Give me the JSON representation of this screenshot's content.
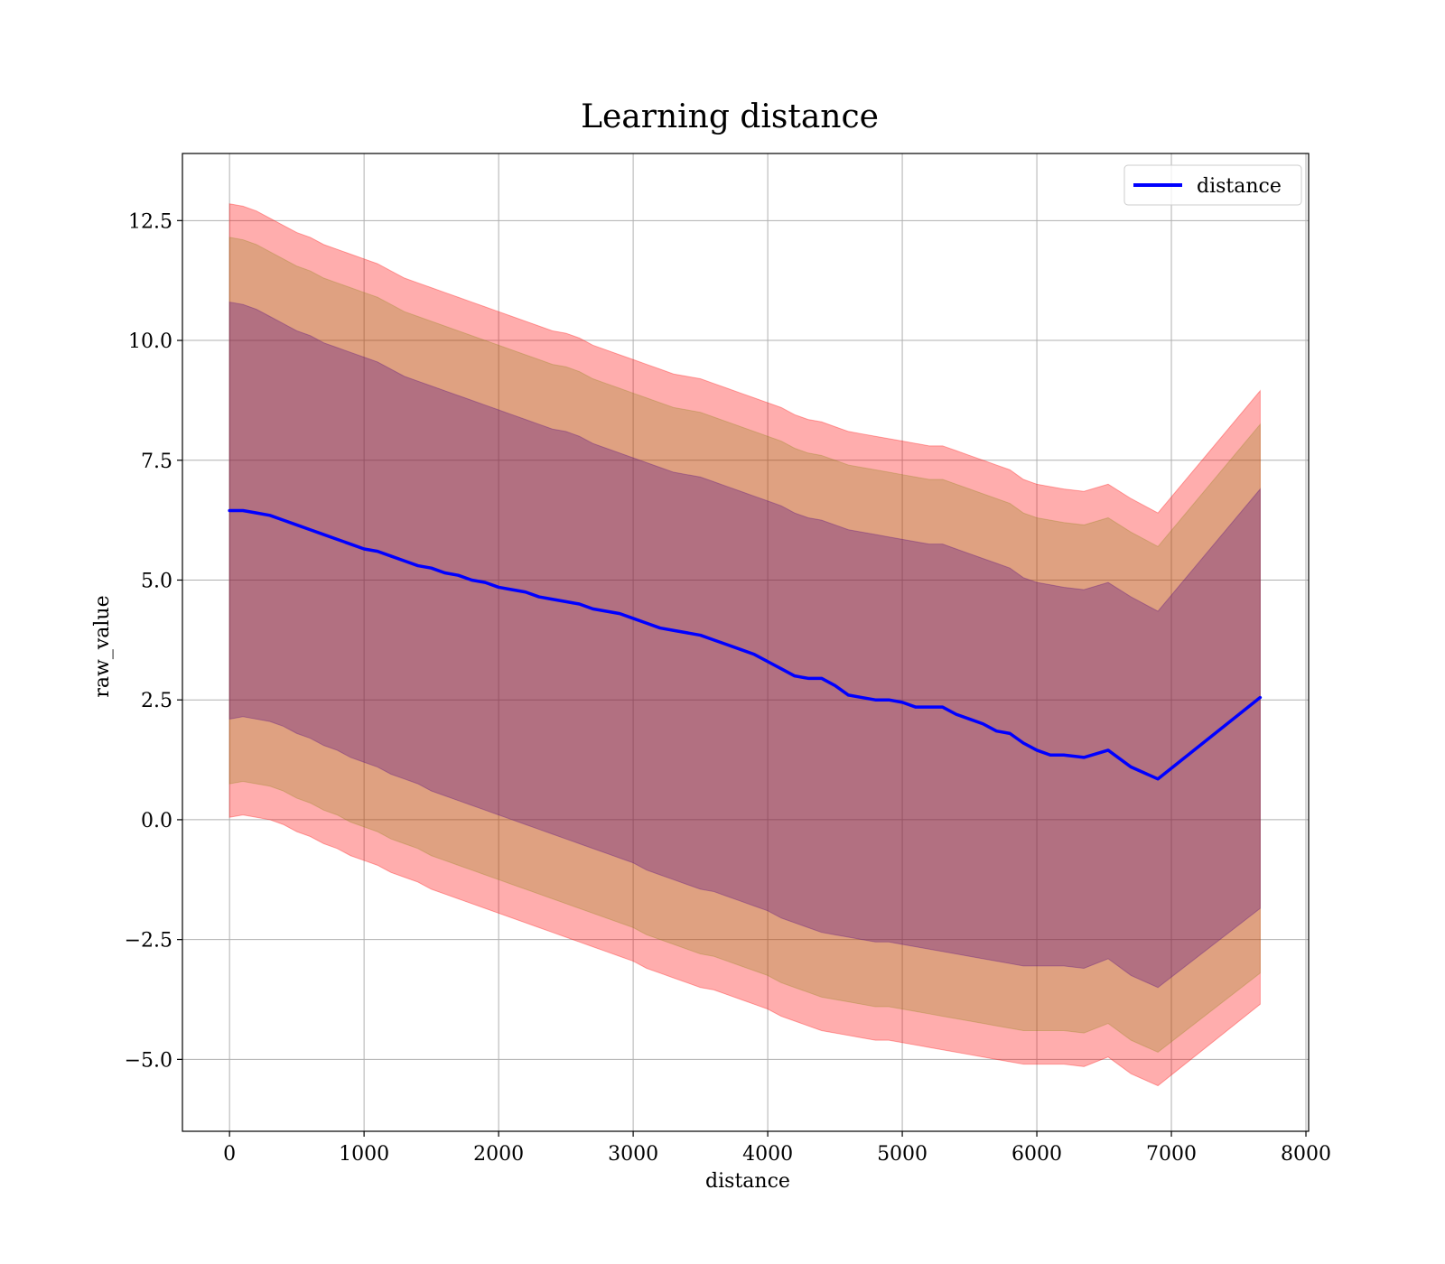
{
  "chart_data": {
    "type": "line",
    "title": "Learning distance",
    "xlabel": "distance",
    "ylabel": "raw_value",
    "xlim": [
      -350,
      8020
    ],
    "ylim": [
      -6.5,
      13.9
    ],
    "x_ticks": [
      0,
      1000,
      2000,
      3000,
      4000,
      5000,
      6000,
      7000,
      8000
    ],
    "x_tick_labels": [
      "0",
      "1000",
      "2000",
      "3000",
      "4000",
      "5000",
      "6000",
      "7000",
      "8000"
    ],
    "y_ticks": [
      -5.0,
      -2.5,
      0.0,
      2.5,
      5.0,
      7.5,
      10.0,
      12.5
    ],
    "y_tick_labels": [
      "−5.0",
      "−2.5",
      "0.0",
      "2.5",
      "5.0",
      "7.5",
      "10.0",
      "12.5"
    ],
    "grid": true,
    "legend": {
      "position": "upper right",
      "entries": [
        "distance"
      ]
    },
    "series": [
      {
        "name": "distance",
        "color": "#0000ff",
        "x": [
          0,
          100,
          200,
          300,
          400,
          500,
          600,
          700,
          800,
          900,
          1000,
          1100,
          1200,
          1300,
          1400,
          1500,
          1600,
          1700,
          1800,
          1900,
          2000,
          2100,
          2200,
          2300,
          2400,
          2500,
          2600,
          2700,
          2800,
          2900,
          3000,
          3100,
          3200,
          3300,
          3400,
          3500,
          3600,
          3700,
          3800,
          3900,
          4000,
          4100,
          4200,
          4300,
          4400,
          4500,
          4600,
          4700,
          4800,
          4900,
          5000,
          5100,
          5200,
          5300,
          5400,
          5500,
          5600,
          5700,
          5800,
          5900,
          6000,
          6100,
          6200,
          6350,
          6530,
          6700,
          6900,
          7660
        ],
        "y": [
          6.45,
          6.45,
          6.4,
          6.35,
          6.25,
          6.15,
          6.05,
          5.95,
          5.85,
          5.75,
          5.65,
          5.6,
          5.5,
          5.4,
          5.3,
          5.25,
          5.15,
          5.1,
          5.0,
          4.95,
          4.85,
          4.8,
          4.75,
          4.65,
          4.6,
          4.55,
          4.5,
          4.4,
          4.35,
          4.3,
          4.2,
          4.1,
          4.0,
          3.95,
          3.9,
          3.85,
          3.75,
          3.65,
          3.55,
          3.45,
          3.3,
          3.15,
          3.0,
          2.95,
          2.95,
          2.8,
          2.6,
          2.55,
          2.5,
          2.5,
          2.45,
          2.35,
          2.35,
          2.35,
          2.2,
          2.1,
          2.0,
          1.85,
          1.8,
          1.6,
          1.45,
          1.35,
          1.35,
          1.3,
          1.45,
          1.1,
          0.85,
          2.55
        ]
      }
    ],
    "bands": [
      {
        "color": "#ff0000",
        "opacity": 0.32,
        "upper": [
          12.85,
          12.8,
          12.7,
          12.55,
          12.4,
          12.25,
          12.15,
          12.0,
          11.9,
          11.8,
          11.7,
          11.6,
          11.45,
          11.3,
          11.2,
          11.1,
          11.0,
          10.9,
          10.8,
          10.7,
          10.6,
          10.5,
          10.4,
          10.3,
          10.2,
          10.15,
          10.05,
          9.9,
          9.8,
          9.7,
          9.6,
          9.5,
          9.4,
          9.3,
          9.25,
          9.2,
          9.1,
          9.0,
          8.9,
          8.8,
          8.7,
          8.6,
          8.45,
          8.35,
          8.3,
          8.2,
          8.1,
          8.05,
          8.0,
          7.95,
          7.9,
          7.85,
          7.8,
          7.8,
          7.7,
          7.6,
          7.5,
          7.4,
          7.3,
          7.1,
          7.0,
          6.95,
          6.9,
          6.85,
          7.0,
          6.7,
          6.4,
          8.95
        ],
        "lower": [
          0.05,
          0.1,
          0.05,
          0.0,
          -0.1,
          -0.25,
          -0.35,
          -0.5,
          -0.6,
          -0.75,
          -0.85,
          -0.95,
          -1.1,
          -1.2,
          -1.3,
          -1.45,
          -1.55,
          -1.65,
          -1.75,
          -1.85,
          -1.95,
          -2.05,
          -2.15,
          -2.25,
          -2.35,
          -2.45,
          -2.55,
          -2.65,
          -2.75,
          -2.85,
          -2.95,
          -3.1,
          -3.2,
          -3.3,
          -3.4,
          -3.5,
          -3.55,
          -3.65,
          -3.75,
          -3.85,
          -3.95,
          -4.1,
          -4.2,
          -4.3,
          -4.4,
          -4.45,
          -4.5,
          -4.55,
          -4.6,
          -4.6,
          -4.65,
          -4.7,
          -4.75,
          -4.8,
          -4.85,
          -4.9,
          -4.95,
          -5.0,
          -5.05,
          -5.1,
          -5.1,
          -5.1,
          -5.1,
          -5.15,
          -4.95,
          -5.3,
          -5.55,
          -3.85
        ]
      },
      {
        "color": "#808000",
        "opacity": 0.25,
        "upper": [
          12.15,
          12.1,
          12.0,
          11.85,
          11.7,
          11.55,
          11.45,
          11.3,
          11.2,
          11.1,
          11.0,
          10.9,
          10.75,
          10.6,
          10.5,
          10.4,
          10.3,
          10.2,
          10.1,
          10.0,
          9.9,
          9.8,
          9.7,
          9.6,
          9.5,
          9.45,
          9.35,
          9.2,
          9.1,
          9.0,
          8.9,
          8.8,
          8.7,
          8.6,
          8.55,
          8.5,
          8.4,
          8.3,
          8.2,
          8.1,
          8.0,
          7.9,
          7.75,
          7.65,
          7.6,
          7.5,
          7.4,
          7.35,
          7.3,
          7.25,
          7.2,
          7.15,
          7.1,
          7.1,
          7.0,
          6.9,
          6.8,
          6.7,
          6.6,
          6.4,
          6.3,
          6.25,
          6.2,
          6.15,
          6.3,
          6.0,
          5.7,
          8.25
        ],
        "lower": [
          0.75,
          0.8,
          0.75,
          0.7,
          0.6,
          0.45,
          0.35,
          0.2,
          0.1,
          -0.05,
          -0.15,
          -0.25,
          -0.4,
          -0.5,
          -0.6,
          -0.75,
          -0.85,
          -0.95,
          -1.05,
          -1.15,
          -1.25,
          -1.35,
          -1.45,
          -1.55,
          -1.65,
          -1.75,
          -1.85,
          -1.95,
          -2.05,
          -2.15,
          -2.25,
          -2.4,
          -2.5,
          -2.6,
          -2.7,
          -2.8,
          -2.85,
          -2.95,
          -3.05,
          -3.15,
          -3.25,
          -3.4,
          -3.5,
          -3.6,
          -3.7,
          -3.75,
          -3.8,
          -3.85,
          -3.9,
          -3.9,
          -3.95,
          -4.0,
          -4.05,
          -4.1,
          -4.15,
          -4.2,
          -4.25,
          -4.3,
          -4.35,
          -4.4,
          -4.4,
          -4.4,
          -4.4,
          -4.45,
          -4.25,
          -4.6,
          -4.85,
          -3.2
        ]
      },
      {
        "color": "#4b0082",
        "opacity": 0.3,
        "upper": [
          10.8,
          10.75,
          10.65,
          10.5,
          10.35,
          10.2,
          10.1,
          9.95,
          9.85,
          9.75,
          9.65,
          9.55,
          9.4,
          9.25,
          9.15,
          9.05,
          8.95,
          8.85,
          8.75,
          8.65,
          8.55,
          8.45,
          8.35,
          8.25,
          8.15,
          8.1,
          8.0,
          7.85,
          7.75,
          7.65,
          7.55,
          7.45,
          7.35,
          7.25,
          7.2,
          7.15,
          7.05,
          6.95,
          6.85,
          6.75,
          6.65,
          6.55,
          6.4,
          6.3,
          6.25,
          6.15,
          6.05,
          6.0,
          5.95,
          5.9,
          5.85,
          5.8,
          5.75,
          5.75,
          5.65,
          5.55,
          5.45,
          5.35,
          5.25,
          5.05,
          4.95,
          4.9,
          4.85,
          4.8,
          4.95,
          4.65,
          4.35,
          6.9
        ],
        "lower": [
          2.1,
          2.15,
          2.1,
          2.05,
          1.95,
          1.8,
          1.7,
          1.55,
          1.45,
          1.3,
          1.2,
          1.1,
          0.95,
          0.85,
          0.75,
          0.6,
          0.5,
          0.4,
          0.3,
          0.2,
          0.1,
          0.0,
          -0.1,
          -0.2,
          -0.3,
          -0.4,
          -0.5,
          -0.6,
          -0.7,
          -0.8,
          -0.9,
          -1.05,
          -1.15,
          -1.25,
          -1.35,
          -1.45,
          -1.5,
          -1.6,
          -1.7,
          -1.8,
          -1.9,
          -2.05,
          -2.15,
          -2.25,
          -2.35,
          -2.4,
          -2.45,
          -2.5,
          -2.55,
          -2.55,
          -2.6,
          -2.65,
          -2.7,
          -2.75,
          -2.8,
          -2.85,
          -2.9,
          -2.95,
          -3.0,
          -3.05,
          -3.05,
          -3.05,
          -3.05,
          -3.1,
          -2.9,
          -3.25,
          -3.5,
          -1.85
        ]
      }
    ]
  }
}
